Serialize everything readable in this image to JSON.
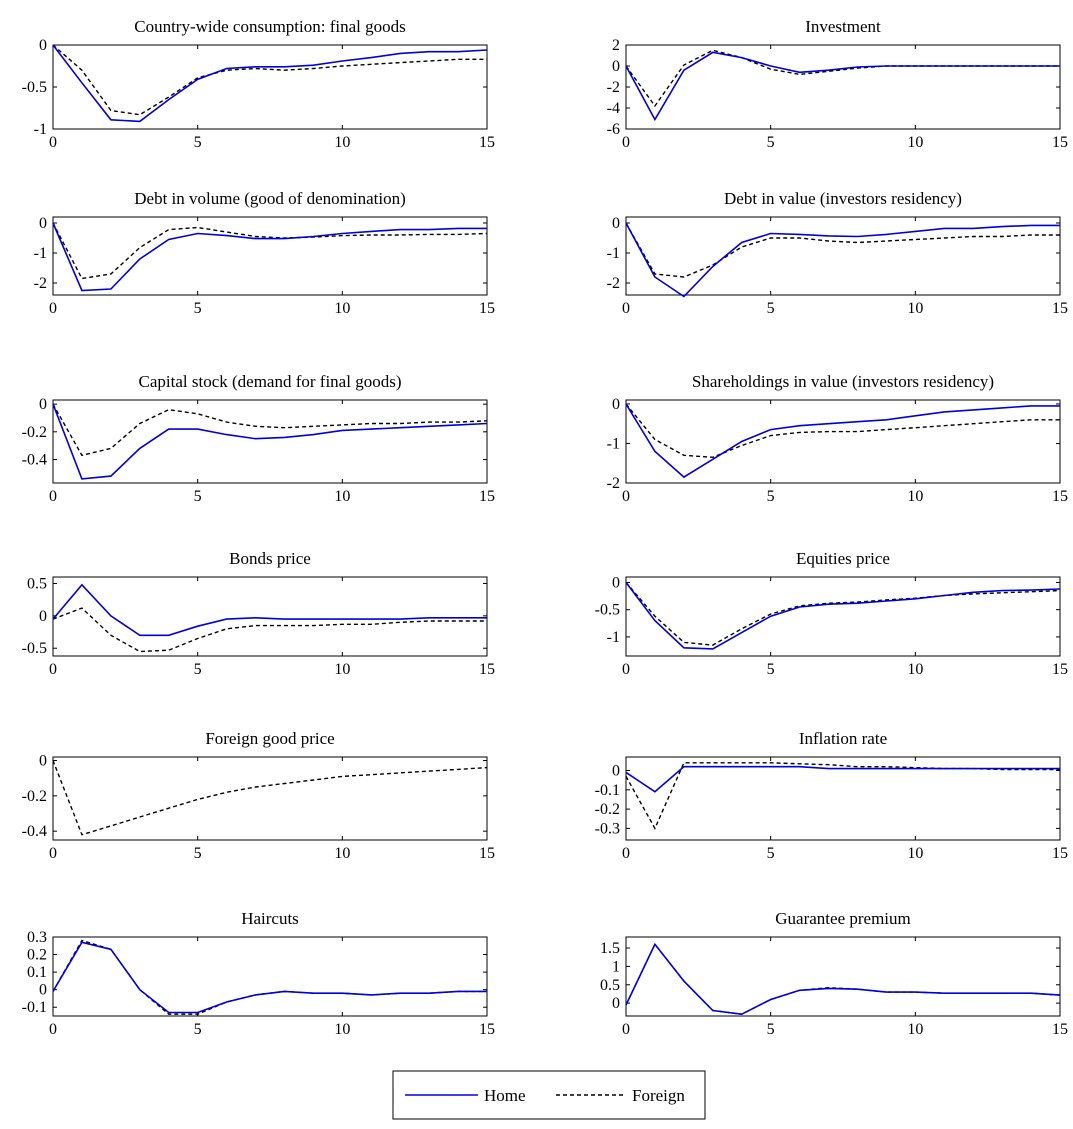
{
  "colors": {
    "home": "#0000dd",
    "foreign": "#000000"
  },
  "legend": {
    "placement": "bottom-center",
    "entries": [
      {
        "label": "Home",
        "style": "solid",
        "color": "#0000dd"
      },
      {
        "label": "Foreign",
        "style": "dashed",
        "color": "#000000"
      }
    ]
  },
  "chart_data": [
    {
      "type": "line",
      "title": "Country-wide consumption: final goods",
      "xlim": [
        0,
        15
      ],
      "ylim": [
        -1,
        0
      ],
      "xticks": [
        0,
        5,
        10,
        15
      ],
      "yticks": [
        0,
        -0.5,
        -1
      ],
      "ytick_labels": [
        "0",
        "-0.5",
        "-1"
      ],
      "x": [
        0,
        1,
        2,
        3,
        4,
        5,
        6,
        7,
        8,
        9,
        10,
        11,
        12,
        13,
        14,
        15
      ],
      "series": [
        {
          "name": "Home",
          "values": [
            0,
            -0.45,
            -0.89,
            -0.91,
            -0.65,
            -0.41,
            -0.28,
            -0.26,
            -0.26,
            -0.24,
            -0.19,
            -0.15,
            -0.1,
            -0.08,
            -0.08,
            -0.06
          ]
        },
        {
          "name": "Foreign",
          "values": [
            0,
            -0.3,
            -0.78,
            -0.83,
            -0.62,
            -0.39,
            -0.3,
            -0.28,
            -0.3,
            -0.28,
            -0.25,
            -0.23,
            -0.21,
            -0.19,
            -0.17,
            -0.17
          ]
        }
      ]
    },
    {
      "type": "line",
      "title": "Investment",
      "xlim": [
        0,
        15
      ],
      "ylim": [
        -6,
        2
      ],
      "xticks": [
        0,
        5,
        10,
        15
      ],
      "yticks": [
        2,
        0,
        -2,
        -4,
        -6
      ],
      "ytick_labels": [
        "2",
        "0",
        "-2",
        "-4",
        "-6"
      ],
      "x": [
        0,
        1,
        2,
        3,
        4,
        5,
        6,
        7,
        8,
        9,
        10,
        11,
        12,
        13,
        14,
        15
      ],
      "series": [
        {
          "name": "Home",
          "values": [
            0,
            -5.1,
            -0.4,
            1.3,
            0.8,
            0,
            -0.6,
            -0.4,
            -0.1,
            0,
            0,
            0,
            0,
            0,
            0,
            0
          ]
        },
        {
          "name": "Foreign",
          "values": [
            0,
            -3.8,
            0.1,
            1.5,
            0.8,
            -0.3,
            -0.8,
            -0.5,
            -0.2,
            0,
            0,
            0,
            0,
            0,
            0,
            0
          ]
        }
      ]
    },
    {
      "type": "line",
      "title": "Debt in volume (good of denomination)",
      "xlim": [
        0,
        15
      ],
      "ylim": [
        -2.4,
        0.2
      ],
      "xticks": [
        0,
        5,
        10,
        15
      ],
      "yticks": [
        0,
        -1,
        -2
      ],
      "ytick_labels": [
        "0",
        "-1",
        "-2"
      ],
      "x": [
        0,
        1,
        2,
        3,
        4,
        5,
        6,
        7,
        8,
        9,
        10,
        11,
        12,
        13,
        14,
        15
      ],
      "series": [
        {
          "name": "Home",
          "values": [
            0,
            -2.25,
            -2.2,
            -1.2,
            -0.55,
            -0.35,
            -0.42,
            -0.52,
            -0.52,
            -0.45,
            -0.35,
            -0.28,
            -0.22,
            -0.22,
            -0.18,
            -0.18
          ]
        },
        {
          "name": "Foreign",
          "values": [
            0,
            -1.85,
            -1.7,
            -0.82,
            -0.22,
            -0.15,
            -0.3,
            -0.45,
            -0.5,
            -0.47,
            -0.42,
            -0.4,
            -0.4,
            -0.38,
            -0.38,
            -0.35
          ]
        }
      ]
    },
    {
      "type": "line",
      "title": "Debt in value (investors residency)",
      "xlim": [
        0,
        15
      ],
      "ylim": [
        -2.4,
        0.2
      ],
      "xticks": [
        0,
        5,
        10,
        15
      ],
      "yticks": [
        0,
        -1,
        -2
      ],
      "ytick_labels": [
        "0",
        "-1",
        "-2"
      ],
      "x": [
        0,
        1,
        2,
        3,
        4,
        5,
        6,
        7,
        8,
        9,
        10,
        11,
        12,
        13,
        14,
        15
      ],
      "series": [
        {
          "name": "Home",
          "values": [
            0,
            -1.8,
            -2.45,
            -1.45,
            -0.65,
            -0.35,
            -0.38,
            -0.43,
            -0.45,
            -0.38,
            -0.28,
            -0.18,
            -0.18,
            -0.12,
            -0.08,
            -0.08
          ]
        },
        {
          "name": "Foreign",
          "values": [
            0,
            -1.7,
            -1.8,
            -1.4,
            -0.8,
            -0.5,
            -0.5,
            -0.6,
            -0.65,
            -0.6,
            -0.55,
            -0.5,
            -0.45,
            -0.45,
            -0.4,
            -0.4
          ]
        }
      ]
    },
    {
      "type": "line",
      "title": "Capital stock (demand for final goods)",
      "xlim": [
        0,
        15
      ],
      "ylim": [
        -0.57,
        0.03
      ],
      "xticks": [
        0,
        5,
        10,
        15
      ],
      "yticks": [
        0,
        -0.2,
        -0.4
      ],
      "ytick_labels": [
        "0",
        "-0.2",
        "-0.4"
      ],
      "x": [
        0,
        1,
        2,
        3,
        4,
        5,
        6,
        7,
        8,
        9,
        10,
        11,
        12,
        13,
        14,
        15
      ],
      "series": [
        {
          "name": "Home",
          "values": [
            0,
            -0.54,
            -0.52,
            -0.32,
            -0.18,
            -0.18,
            -0.22,
            -0.25,
            -0.24,
            -0.22,
            -0.19,
            -0.18,
            -0.17,
            -0.16,
            -0.15,
            -0.14
          ]
        },
        {
          "name": "Foreign",
          "values": [
            0,
            -0.37,
            -0.32,
            -0.14,
            -0.04,
            -0.07,
            -0.13,
            -0.16,
            -0.17,
            -0.16,
            -0.15,
            -0.14,
            -0.14,
            -0.13,
            -0.13,
            -0.12
          ]
        }
      ]
    },
    {
      "type": "line",
      "title": "Shareholdings in value (investors residency)",
      "xlim": [
        0,
        15
      ],
      "ylim": [
        -2,
        0.1
      ],
      "xticks": [
        0,
        5,
        10,
        15
      ],
      "yticks": [
        0,
        -1,
        -2
      ],
      "ytick_labels": [
        "0",
        "-1",
        "-2"
      ],
      "x": [
        0,
        1,
        2,
        3,
        4,
        5,
        6,
        7,
        8,
        9,
        10,
        11,
        12,
        13,
        14,
        15
      ],
      "series": [
        {
          "name": "Home",
          "values": [
            0,
            -1.2,
            -1.85,
            -1.4,
            -0.95,
            -0.65,
            -0.55,
            -0.5,
            -0.45,
            -0.4,
            -0.3,
            -0.2,
            -0.15,
            -0.1,
            -0.05,
            -0.05
          ]
        },
        {
          "name": "Foreign",
          "values": [
            0,
            -0.9,
            -1.3,
            -1.35,
            -1.05,
            -0.8,
            -0.72,
            -0.7,
            -0.7,
            -0.65,
            -0.6,
            -0.55,
            -0.5,
            -0.45,
            -0.4,
            -0.4
          ]
        }
      ]
    },
    {
      "type": "line",
      "title": "Bonds price",
      "xlim": [
        0,
        15
      ],
      "ylim": [
        -0.62,
        0.6
      ],
      "xticks": [
        0,
        5,
        10,
        15
      ],
      "yticks": [
        0.5,
        0,
        -0.5
      ],
      "ytick_labels": [
        "0.5",
        "0",
        "-0.5"
      ],
      "x": [
        0,
        1,
        2,
        3,
        4,
        5,
        6,
        7,
        8,
        9,
        10,
        11,
        12,
        13,
        14,
        15
      ],
      "series": [
        {
          "name": "Home",
          "values": [
            -0.05,
            0.48,
            0,
            -0.3,
            -0.3,
            -0.16,
            -0.05,
            -0.03,
            -0.05,
            -0.05,
            -0.05,
            -0.05,
            -0.05,
            -0.03,
            -0.03,
            -0.03
          ]
        },
        {
          "name": "Foreign",
          "values": [
            -0.05,
            0.12,
            -0.3,
            -0.55,
            -0.53,
            -0.35,
            -0.2,
            -0.15,
            -0.15,
            -0.15,
            -0.13,
            -0.13,
            -0.1,
            -0.08,
            -0.08,
            -0.08
          ]
        }
      ]
    },
    {
      "type": "line",
      "title": "Equities price",
      "xlim": [
        0,
        15
      ],
      "ylim": [
        -1.35,
        0.1
      ],
      "xticks": [
        0,
        5,
        10,
        15
      ],
      "yticks": [
        0,
        -0.5,
        -1
      ],
      "ytick_labels": [
        "0",
        "-0.5",
        "-1"
      ],
      "x": [
        0,
        1,
        2,
        3,
        4,
        5,
        6,
        7,
        8,
        9,
        10,
        11,
        12,
        13,
        14,
        15
      ],
      "series": [
        {
          "name": "Home",
          "values": [
            0,
            -0.7,
            -1.2,
            -1.22,
            -0.92,
            -0.62,
            -0.45,
            -0.4,
            -0.38,
            -0.34,
            -0.3,
            -0.24,
            -0.18,
            -0.15,
            -0.14,
            -0.12
          ]
        },
        {
          "name": "Foreign",
          "values": [
            0,
            -0.62,
            -1.1,
            -1.15,
            -0.85,
            -0.58,
            -0.43,
            -0.38,
            -0.36,
            -0.32,
            -0.29,
            -0.24,
            -0.21,
            -0.19,
            -0.17,
            -0.15
          ]
        }
      ]
    },
    {
      "type": "line",
      "title": "Foreign good price",
      "xlim": [
        0,
        15
      ],
      "ylim": [
        -0.45,
        0.02
      ],
      "xticks": [
        0,
        5,
        10,
        15
      ],
      "yticks": [
        0,
        -0.2,
        -0.4
      ],
      "ytick_labels": [
        "0",
        "-0.2",
        "-0.4"
      ],
      "x": [
        0,
        1,
        2,
        3,
        4,
        5,
        6,
        7,
        8,
        9,
        10,
        11,
        12,
        13,
        14,
        15
      ],
      "series": [
        {
          "name": "Foreign",
          "values": [
            0,
            -0.42,
            -0.37,
            -0.32,
            -0.27,
            -0.22,
            -0.18,
            -0.15,
            -0.13,
            -0.11,
            -0.09,
            -0.08,
            -0.07,
            -0.06,
            -0.05,
            -0.04
          ]
        }
      ]
    },
    {
      "type": "line",
      "title": "Inflation rate",
      "xlim": [
        0,
        15
      ],
      "ylim": [
        -0.36,
        0.07
      ],
      "xticks": [
        0,
        5,
        10,
        15
      ],
      "yticks": [
        0,
        -0.1,
        -0.2,
        -0.3
      ],
      "ytick_labels": [
        "0",
        "-0.1",
        "-0.2",
        "-0.3"
      ],
      "x": [
        0,
        1,
        2,
        3,
        4,
        5,
        6,
        7,
        8,
        9,
        10,
        11,
        12,
        13,
        14,
        15
      ],
      "series": [
        {
          "name": "Home",
          "values": [
            -0.01,
            -0.11,
            0.02,
            0.02,
            0.02,
            0.02,
            0.02,
            0.01,
            0.01,
            0.01,
            0.01,
            0.01,
            0.01,
            0.01,
            0.01,
            0.01
          ]
        },
        {
          "name": "Foreign",
          "values": [
            -0.03,
            -0.3,
            0.04,
            0.04,
            0.04,
            0.04,
            0.035,
            0.03,
            0.02,
            0.02,
            0.015,
            0.01,
            0.01,
            0.005,
            0.005,
            0.005
          ]
        }
      ]
    },
    {
      "type": "line",
      "title": "Haircuts",
      "xlim": [
        0,
        15
      ],
      "ylim": [
        -0.15,
        0.3
      ],
      "xticks": [
        0,
        5,
        10,
        15
      ],
      "yticks": [
        0.3,
        0.2,
        0.1,
        0,
        -0.1
      ],
      "ytick_labels": [
        "0.3",
        "0.2",
        "0.1",
        "0",
        "-0.1"
      ],
      "x": [
        0,
        1,
        2,
        3,
        4,
        5,
        6,
        7,
        8,
        9,
        10,
        11,
        12,
        13,
        14,
        15
      ],
      "series": [
        {
          "name": "Home",
          "values": [
            -0.01,
            0.27,
            0.23,
            0.0,
            -0.13,
            -0.13,
            -0.07,
            -0.03,
            -0.01,
            -0.02,
            -0.02,
            -0.03,
            -0.02,
            -0.02,
            -0.01,
            -0.01
          ]
        },
        {
          "name": "Foreign",
          "values": [
            -0.01,
            0.28,
            0.23,
            0.0,
            -0.14,
            -0.14,
            -0.07,
            -0.03,
            -0.01,
            -0.02,
            -0.02,
            -0.03,
            -0.02,
            -0.02,
            -0.01,
            -0.01
          ]
        }
      ]
    },
    {
      "type": "line",
      "title": "Guarantee premium",
      "xlim": [
        0,
        15
      ],
      "ylim": [
        -0.35,
        1.8
      ],
      "xticks": [
        0,
        5,
        10,
        15
      ],
      "yticks": [
        1.5,
        1,
        0.5,
        0
      ],
      "ytick_labels": [
        "1.5",
        "1",
        "0.5",
        "0"
      ],
      "x": [
        0,
        1,
        2,
        3,
        4,
        5,
        6,
        7,
        8,
        9,
        10,
        11,
        12,
        13,
        14,
        15
      ],
      "series": [
        {
          "name": "Home",
          "values": [
            -0.05,
            1.6,
            0.6,
            -0.2,
            -0.3,
            0.1,
            0.35,
            0.4,
            0.38,
            0.3,
            0.3,
            0.27,
            0.27,
            0.27,
            0.27,
            0.22
          ]
        },
        {
          "name": "Foreign",
          "values": [
            -0.05,
            1.6,
            0.6,
            -0.2,
            -0.3,
            0.1,
            0.35,
            0.42,
            0.38,
            0.3,
            0.3,
            0.27,
            0.27,
            0.27,
            0.27,
            0.22
          ]
        }
      ]
    }
  ]
}
